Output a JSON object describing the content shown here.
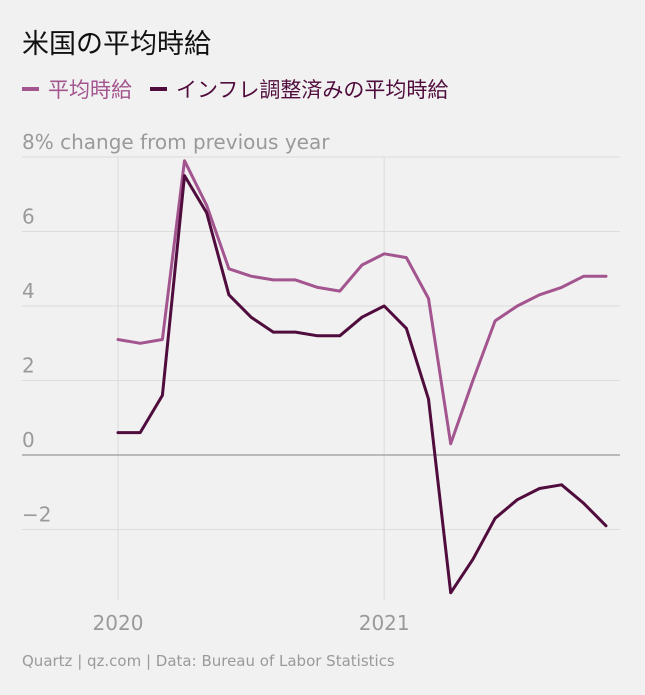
{
  "title": "米国の平均時給",
  "footer": "Quartz | qz.com | Data: Bureau of Labor Statistics",
  "colors": {
    "nominal": "#a3558f",
    "real": "#4f0c3c",
    "grid": "#dcdcdc",
    "zero": "#9a9a9a",
    "text": "#9a9a9a"
  },
  "chart_data": {
    "type": "line",
    "title": "米国の平均時給",
    "ylabel": "% change from previous year",
    "ylim": [
      -3.8,
      8
    ],
    "yticks": [
      {
        "value": 8,
        "label": "8% change from previous year"
      },
      {
        "value": 6,
        "label": "6"
      },
      {
        "value": 4,
        "label": "4"
      },
      {
        "value": 2,
        "label": "2"
      },
      {
        "value": 0,
        "label": "0"
      },
      {
        "value": -2,
        "label": "−2"
      }
    ],
    "xticks": [
      {
        "value": "2020-01",
        "label": "2020"
      },
      {
        "value": "2021-01",
        "label": "2021"
      }
    ],
    "x": [
      "2020-01",
      "2020-02",
      "2020-03",
      "2020-04",
      "2020-05",
      "2020-06",
      "2020-07",
      "2020-08",
      "2020-09",
      "2020-10",
      "2020-11",
      "2020-12",
      "2021-01",
      "2021-02",
      "2021-03",
      "2021-04",
      "2021-05",
      "2021-06",
      "2021-07",
      "2021-08",
      "2021-09",
      "2021-10",
      "2021-11",
      "2021-12"
    ],
    "series": [
      {
        "name": "平均時給",
        "key": "nominal",
        "values": [
          3.1,
          3.0,
          3.1,
          7.9,
          6.7,
          5.0,
          4.8,
          4.7,
          4.7,
          4.5,
          4.4,
          5.1,
          5.4,
          5.3,
          4.2,
          0.3,
          2.0,
          3.6,
          4.0,
          4.3,
          4.5,
          4.8,
          4.8,
          null
        ]
      },
      {
        "name": "インフレ調整済みの平均時給",
        "key": "real",
        "values": [
          0.6,
          0.6,
          1.6,
          7.5,
          6.5,
          4.3,
          3.7,
          3.3,
          3.3,
          3.2,
          3.2,
          3.7,
          4.0,
          3.4,
          1.5,
          -3.7,
          -2.8,
          -1.7,
          -1.2,
          -0.9,
          -0.8,
          -1.3,
          -1.9,
          null
        ]
      }
    ]
  }
}
